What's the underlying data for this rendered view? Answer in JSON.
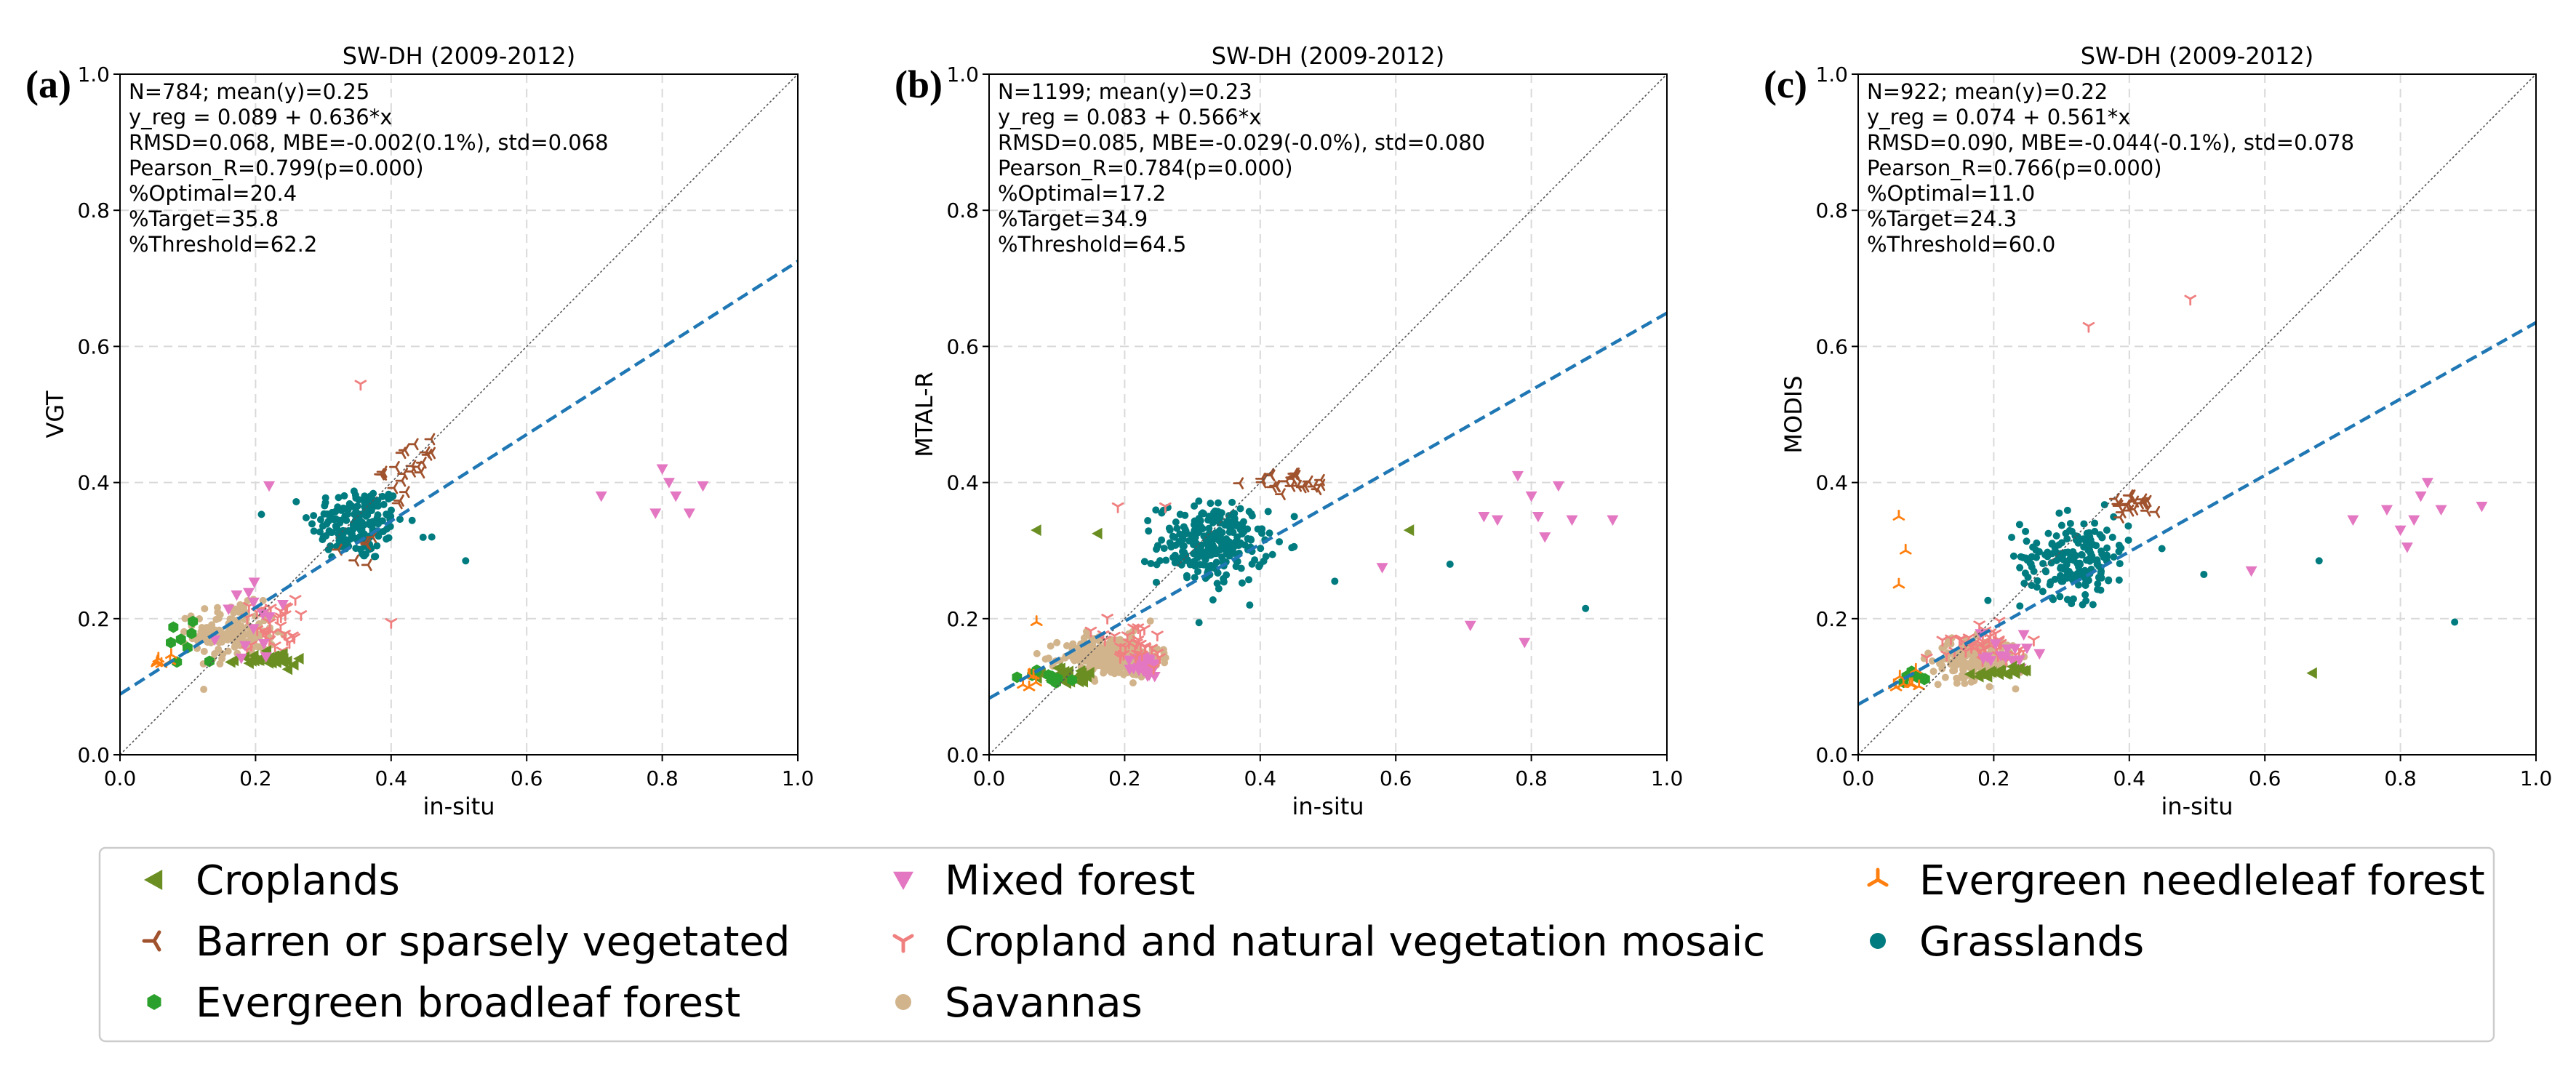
{
  "panels": [
    {
      "label": "(a)",
      "title": "SW-DH (2009-2012)",
      "ylabel": "VGT",
      "xlabel": "in-situ",
      "stats": [
        "N=784; mean(y)=0.25",
        "y_reg = 0.089 + 0.636*x",
        "RMSD=0.068, MBE=-0.002(0.1%), std=0.068",
        "Pearson_R=0.799(p=0.000)",
        "%Optimal=20.4",
        "%Target=35.8",
        "%Threshold=62.2"
      ]
    },
    {
      "label": "(b)",
      "title": "SW-DH (2009-2012)",
      "ylabel": "MTAL-R",
      "xlabel": "in-situ",
      "stats": [
        "N=1199; mean(y)=0.23",
        "y_reg = 0.083 + 0.566*x",
        "RMSD=0.085, MBE=-0.029(-0.0%), std=0.080",
        "Pearson_R=0.784(p=0.000)",
        "%Optimal=17.2",
        "%Target=34.9",
        "%Threshold=64.5"
      ]
    },
    {
      "label": "(c)",
      "title": "SW-DH (2009-2012)",
      "ylabel": "MODIS",
      "xlabel": "in-situ",
      "stats": [
        "N=922; mean(y)=0.22",
        "y_reg = 0.074 + 0.561*x",
        "RMSD=0.090, MBE=-0.044(-0.1%), std=0.078",
        "Pearson_R=0.766(p=0.000)",
        "%Optimal=11.0",
        "%Target=24.3",
        "%Threshold=60.0"
      ]
    }
  ],
  "ticks": [
    "0.0",
    "0.2",
    "0.4",
    "0.6",
    "0.8",
    "1.0"
  ],
  "legend": [
    {
      "label": "Croplands",
      "marker": "triangle-left",
      "color": "#6b8e23"
    },
    {
      "label": "Barren or sparsely vegetated",
      "marker": "tri-left",
      "color": "#a0522d"
    },
    {
      "label": "Evergreen broadleaf forest",
      "marker": "hexagon",
      "color": "#2ca02c"
    },
    {
      "label": "Mixed forest",
      "marker": "triangle-down",
      "color": "#e377c2"
    },
    {
      "label": "Cropland and natural vegetation mosaic",
      "marker": "tri-down",
      "color": "#f08080"
    },
    {
      "label": "Savannas",
      "marker": "circle",
      "color": "#d2b48c"
    },
    {
      "label": "Evergreen needleleaf forest",
      "marker": "tri-up",
      "color": "#ff7f0e"
    },
    {
      "label": "Grasslands",
      "marker": "circle",
      "color": "#007b7f"
    }
  ],
  "colors": {
    "regression": "#1f77b4",
    "identity": "#555555"
  },
  "chart_data": [
    {
      "type": "scatter",
      "title": "SW-DH (2009-2012)",
      "xlabel": "in-situ",
      "ylabel": "VGT",
      "xlim": [
        0,
        1
      ],
      "ylim": [
        0,
        1
      ],
      "grid": true,
      "regression": {
        "intercept": 0.089,
        "slope": 0.636
      },
      "clusters": [
        {
          "cls": "Grasslands",
          "cx": 0.35,
          "cy": 0.34,
          "sx": 0.035,
          "sy": 0.028,
          "n": 170
        },
        {
          "cls": "Savannas",
          "cx": 0.17,
          "cy": 0.18,
          "sx": 0.03,
          "sy": 0.02,
          "n": 170
        },
        {
          "cls": "Cropland and natural vegetation mosaic",
          "cx": 0.22,
          "cy": 0.19,
          "sx": 0.02,
          "sy": 0.02,
          "n": 35
        },
        {
          "cls": "Croplands",
          "cx": 0.22,
          "cy": 0.14,
          "sx": 0.03,
          "sy": 0.005,
          "n": 30
        },
        {
          "cls": "Evergreen broadleaf forest",
          "cx": 0.09,
          "cy": 0.16,
          "sx": 0.015,
          "sy": 0.02,
          "n": 8
        },
        {
          "cls": "Evergreen needleleaf forest",
          "cx": 0.06,
          "cy": 0.14,
          "sx": 0.01,
          "sy": 0.008,
          "n": 6
        },
        {
          "cls": "Barren or sparsely vegetated",
          "cx": 0.43,
          "cy": 0.42,
          "sx": 0.02,
          "sy": 0.02,
          "n": 22
        },
        {
          "cls": "Barren or sparsely vegetated",
          "cx": 0.33,
          "cy": 0.3,
          "sx": 0.02,
          "sy": 0.01,
          "n": 6
        },
        {
          "cls": "Mixed forest",
          "cx": 0.21,
          "cy": 0.19,
          "sx": 0.03,
          "sy": 0.03,
          "n": 14
        }
      ],
      "points": [
        {
          "cls": "Mixed forest",
          "x": 0.71,
          "y": 0.38
        },
        {
          "cls": "Mixed forest",
          "x": 0.79,
          "y": 0.355
        },
        {
          "cls": "Mixed forest",
          "x": 0.8,
          "y": 0.42
        },
        {
          "cls": "Mixed forest",
          "x": 0.81,
          "y": 0.4
        },
        {
          "cls": "Mixed forest",
          "x": 0.82,
          "y": 0.38
        },
        {
          "cls": "Mixed forest",
          "x": 0.84,
          "y": 0.355
        },
        {
          "cls": "Mixed forest",
          "x": 0.86,
          "y": 0.395
        },
        {
          "cls": "Mixed forest",
          "x": 0.22,
          "y": 0.395
        },
        {
          "cls": "Cropland and natural vegetation mosaic",
          "x": 0.355,
          "y": 0.545
        },
        {
          "cls": "Cropland and natural vegetation mosaic",
          "x": 0.4,
          "y": 0.195
        },
        {
          "cls": "Grasslands",
          "x": 0.51,
          "y": 0.285
        },
        {
          "cls": "Grasslands",
          "x": 0.46,
          "y": 0.32
        }
      ]
    },
    {
      "type": "scatter",
      "title": "SW-DH (2009-2012)",
      "xlabel": "in-situ",
      "ylabel": "MTAL-R",
      "xlim": [
        0,
        1
      ],
      "ylim": [
        0,
        1
      ],
      "grid": true,
      "regression": {
        "intercept": 0.083,
        "slope": 0.566
      },
      "clusters": [
        {
          "cls": "Grasslands",
          "cx": 0.33,
          "cy": 0.31,
          "sx": 0.04,
          "sy": 0.03,
          "n": 260
        },
        {
          "cls": "Savannas",
          "cx": 0.18,
          "cy": 0.145,
          "sx": 0.035,
          "sy": 0.015,
          "n": 260
        },
        {
          "cls": "Mixed forest",
          "cx": 0.23,
          "cy": 0.13,
          "sx": 0.01,
          "sy": 0.008,
          "n": 30
        },
        {
          "cls": "Cropland and natural vegetation mosaic",
          "cx": 0.21,
          "cy": 0.16,
          "sx": 0.03,
          "sy": 0.02,
          "n": 30
        },
        {
          "cls": "Croplands",
          "cx": 0.12,
          "cy": 0.115,
          "sx": 0.03,
          "sy": 0.006,
          "n": 25
        },
        {
          "cls": "Evergreen broadleaf forest",
          "cx": 0.09,
          "cy": 0.115,
          "sx": 0.02,
          "sy": 0.006,
          "n": 10
        },
        {
          "cls": "Evergreen needleleaf forest",
          "cx": 0.06,
          "cy": 0.11,
          "sx": 0.008,
          "sy": 0.006,
          "n": 6
        },
        {
          "cls": "Barren or sparsely vegetated",
          "cx": 0.45,
          "cy": 0.4,
          "sx": 0.03,
          "sy": 0.008,
          "n": 24
        }
      ],
      "points": [
        {
          "cls": "Mixed forest",
          "x": 0.73,
          "y": 0.35
        },
        {
          "cls": "Mixed forest",
          "x": 0.75,
          "y": 0.345
        },
        {
          "cls": "Mixed forest",
          "x": 0.78,
          "y": 0.41
        },
        {
          "cls": "Mixed forest",
          "x": 0.8,
          "y": 0.38
        },
        {
          "cls": "Mixed forest",
          "x": 0.81,
          "y": 0.35
        },
        {
          "cls": "Mixed forest",
          "x": 0.82,
          "y": 0.32
        },
        {
          "cls": "Mixed forest",
          "x": 0.84,
          "y": 0.395
        },
        {
          "cls": "Mixed forest",
          "x": 0.86,
          "y": 0.345
        },
        {
          "cls": "Mixed forest",
          "x": 0.92,
          "y": 0.345
        },
        {
          "cls": "Mixed forest",
          "x": 0.79,
          "y": 0.165
        },
        {
          "cls": "Mixed forest",
          "x": 0.71,
          "y": 0.19
        },
        {
          "cls": "Mixed forest",
          "x": 0.58,
          "y": 0.275
        },
        {
          "cls": "Croplands",
          "x": 0.62,
          "y": 0.33
        },
        {
          "cls": "Croplands",
          "x": 0.07,
          "y": 0.33
        },
        {
          "cls": "Croplands",
          "x": 0.16,
          "y": 0.325
        },
        {
          "cls": "Cropland and natural vegetation mosaic",
          "x": 0.19,
          "y": 0.365
        },
        {
          "cls": "Cropland and natural vegetation mosaic",
          "x": 0.26,
          "y": 0.365
        },
        {
          "cls": "Grasslands",
          "x": 0.51,
          "y": 0.255
        },
        {
          "cls": "Grasslands",
          "x": 0.68,
          "y": 0.28
        },
        {
          "cls": "Grasslands",
          "x": 0.88,
          "y": 0.215
        },
        {
          "cls": "Evergreen needleleaf forest",
          "x": 0.07,
          "y": 0.195
        }
      ]
    },
    {
      "type": "scatter",
      "title": "SW-DH (2009-2012)",
      "xlabel": "in-situ",
      "ylabel": "MODIS",
      "xlim": [
        0,
        1
      ],
      "ylim": [
        0,
        1
      ],
      "grid": true,
      "regression": {
        "intercept": 0.074,
        "slope": 0.561
      },
      "clusters": [
        {
          "cls": "Grasslands",
          "cx": 0.32,
          "cy": 0.29,
          "sx": 0.04,
          "sy": 0.03,
          "n": 190
        },
        {
          "cls": "Savannas",
          "cx": 0.17,
          "cy": 0.14,
          "sx": 0.03,
          "sy": 0.015,
          "n": 190
        },
        {
          "cls": "Cropland and natural vegetation mosaic",
          "cx": 0.19,
          "cy": 0.165,
          "sx": 0.03,
          "sy": 0.012,
          "n": 40
        },
        {
          "cls": "Mixed forest",
          "cx": 0.21,
          "cy": 0.15,
          "sx": 0.02,
          "sy": 0.02,
          "n": 15
        },
        {
          "cls": "Croplands",
          "cx": 0.21,
          "cy": 0.12,
          "sx": 0.03,
          "sy": 0.004,
          "n": 20
        },
        {
          "cls": "Evergreen broadleaf forest",
          "cx": 0.09,
          "cy": 0.11,
          "sx": 0.015,
          "sy": 0.008,
          "n": 8
        },
        {
          "cls": "Evergreen needleleaf forest",
          "cx": 0.07,
          "cy": 0.1,
          "sx": 0.01,
          "sy": 0.01,
          "n": 8
        },
        {
          "cls": "Barren or sparsely vegetated",
          "cx": 0.41,
          "cy": 0.37,
          "sx": 0.02,
          "sy": 0.008,
          "n": 20
        }
      ],
      "points": [
        {
          "cls": "Mixed forest",
          "x": 0.73,
          "y": 0.345
        },
        {
          "cls": "Mixed forest",
          "x": 0.78,
          "y": 0.36
        },
        {
          "cls": "Mixed forest",
          "x": 0.8,
          "y": 0.33
        },
        {
          "cls": "Mixed forest",
          "x": 0.81,
          "y": 0.305
        },
        {
          "cls": "Mixed forest",
          "x": 0.82,
          "y": 0.345
        },
        {
          "cls": "Mixed forest",
          "x": 0.84,
          "y": 0.4
        },
        {
          "cls": "Mixed forest",
          "x": 0.83,
          "y": 0.38
        },
        {
          "cls": "Mixed forest",
          "x": 0.86,
          "y": 0.36
        },
        {
          "cls": "Mixed forest",
          "x": 0.92,
          "y": 0.365
        },
        {
          "cls": "Mixed forest",
          "x": 0.58,
          "y": 0.27
        },
        {
          "cls": "Cropland and natural vegetation mosaic",
          "x": 0.34,
          "y": 0.63
        },
        {
          "cls": "Cropland and natural vegetation mosaic",
          "x": 0.49,
          "y": 0.67
        },
        {
          "cls": "Evergreen needleleaf forest",
          "x": 0.06,
          "y": 0.35
        },
        {
          "cls": "Evergreen needleleaf forest",
          "x": 0.07,
          "y": 0.3
        },
        {
          "cls": "Evergreen needleleaf forest",
          "x": 0.06,
          "y": 0.25
        },
        {
          "cls": "Croplands",
          "x": 0.67,
          "y": 0.12
        },
        {
          "cls": "Grasslands",
          "x": 0.68,
          "y": 0.285
        },
        {
          "cls": "Grasslands",
          "x": 0.88,
          "y": 0.195
        },
        {
          "cls": "Grasslands",
          "x": 0.51,
          "y": 0.265
        }
      ]
    }
  ]
}
